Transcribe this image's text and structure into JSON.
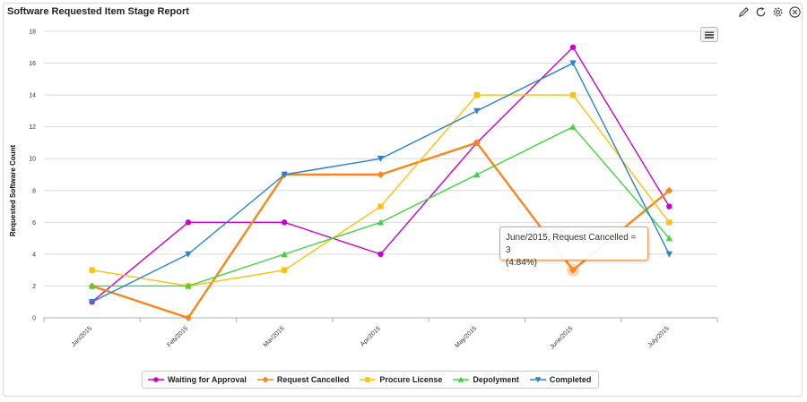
{
  "header": {
    "title": "Software Requested Item Stage Report",
    "tools": [
      {
        "name": "edit-icon"
      },
      {
        "name": "refresh-icon"
      },
      {
        "name": "gear-icon"
      },
      {
        "name": "close-icon"
      }
    ],
    "menu_icon": "hamburger-menu-icon"
  },
  "tooltip": {
    "line1": "June/2015, Request Cancelled = 3",
    "line2": "(4.84%)"
  },
  "chart_data": {
    "type": "line",
    "title": "Software Requested Item Stage Report",
    "xlabel": "",
    "ylabel": "Requested Software Count",
    "ylim": [
      0,
      18
    ],
    "yticks": [
      0,
      2,
      4,
      6,
      8,
      10,
      12,
      14,
      16,
      18
    ],
    "grid": true,
    "legend_position": "bottom",
    "categories": [
      "Jan/2015",
      "Feb/2015",
      "Mar/2015",
      "Apr/2015",
      "May/2015",
      "June/2015",
      "July/2015"
    ],
    "series": [
      {
        "name": "Waiting for Approval",
        "color": "#cc00cc",
        "marker": "circle",
        "values": [
          1,
          6,
          6,
          4,
          11,
          17,
          7
        ]
      },
      {
        "name": "Request Cancelled",
        "color": "#f7871c",
        "marker": "diamond",
        "values": [
          2,
          0,
          9,
          9,
          11,
          3,
          8
        ]
      },
      {
        "name": "Procure License",
        "color": "#fcc10d",
        "marker": "square",
        "values": [
          3,
          2,
          3,
          7,
          14,
          14,
          6
        ]
      },
      {
        "name": "Depolyment",
        "color": "#44d244",
        "marker": "triangle",
        "values": [
          2,
          2,
          4,
          6,
          9,
          12,
          5
        ]
      },
      {
        "name": "Completed",
        "color": "#2b82c9",
        "marker": "triangle-down",
        "values": [
          1,
          4,
          9,
          10,
          13,
          16,
          4
        ]
      }
    ],
    "highlight": {
      "series": "Request Cancelled",
      "category": "June/2015",
      "value": 3
    }
  }
}
